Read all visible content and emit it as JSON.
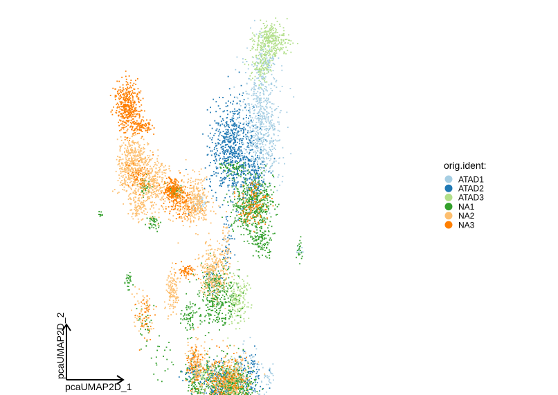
{
  "chart_data": {
    "type": "scatter",
    "title": "",
    "xlabel": "pcaUMAP2D_1",
    "ylabel": "pcaUMAP2D_2",
    "xlim": [
      0,
      100
    ],
    "ylim": [
      0,
      100
    ],
    "grid": false,
    "legend": {
      "title": "orig.ident:",
      "position": "right",
      "entries": [
        "ATAD1",
        "ATAD2",
        "ATAD3",
        "NA1",
        "NA2",
        "NA3"
      ]
    },
    "colors": {
      "ATAD1": "#a6cee3",
      "ATAD2": "#1f78b4",
      "ATAD3": "#b2df8a",
      "NA1": "#33a02c",
      "NA2": "#fdbf6f",
      "NA3": "#ff7f00"
    },
    "series": [
      {
        "name": "ATAD1",
        "clusters": [
          {
            "x": 55.5,
            "y": 74.4,
            "sx": 2.9,
            "sy": 9.1,
            "n": 700
          },
          {
            "x": 56.8,
            "y": 91.4,
            "sx": 1.3,
            "sy": 1.6,
            "n": 60
          },
          {
            "x": 51.0,
            "y": 5.8,
            "sx": 3.5,
            "sy": 4.0,
            "n": 120
          },
          {
            "x": 37.9,
            "y": 53.2,
            "sx": 1.0,
            "sy": 1.2,
            "n": 40
          },
          {
            "x": 66.5,
            "y": 40.0,
            "sx": 0.4,
            "sy": 0.6,
            "n": 12
          },
          {
            "x": 57.6,
            "y": 6.2,
            "sx": 1.0,
            "sy": 1.5,
            "n": 20
          }
        ]
      },
      {
        "name": "ATAD2",
        "clusters": [
          {
            "x": 47.0,
            "y": 67.5,
            "sx": 3.2,
            "sy": 6.2,
            "n": 650
          },
          {
            "x": 53.0,
            "y": 60.0,
            "sx": 2.0,
            "sy": 3.5,
            "n": 150
          },
          {
            "x": 43.0,
            "y": 5.0,
            "sx": 2.4,
            "sy": 3.0,
            "n": 180
          },
          {
            "x": 51.0,
            "y": 7.0,
            "sx": 2.6,
            "sy": 3.0,
            "n": 120
          },
          {
            "x": 36.0,
            "y": 8.0,
            "sx": 1.4,
            "sy": 1.5,
            "n": 60
          },
          {
            "x": 41.4,
            "y": 32.5,
            "sx": 1.2,
            "sy": 2.0,
            "n": 40
          },
          {
            "x": 45.5,
            "y": 41.7,
            "sx": 1.0,
            "sy": 4.0,
            "n": 40
          }
        ]
      },
      {
        "name": "ATAD3",
        "clusters": [
          {
            "x": 58.4,
            "y": 96.6,
            "sx": 2.4,
            "sy": 2.1,
            "n": 300
          },
          {
            "x": 56.0,
            "y": 90.0,
            "sx": 1.6,
            "sy": 2.5,
            "n": 120
          },
          {
            "x": 48.5,
            "y": 27.5,
            "sx": 1.6,
            "sy": 3.6,
            "n": 170
          },
          {
            "x": 47.0,
            "y": 5.5,
            "sx": 2.0,
            "sy": 2.5,
            "n": 110
          },
          {
            "x": 39.5,
            "y": 7.2,
            "sx": 1.2,
            "sy": 1.0,
            "n": 40
          }
        ]
      },
      {
        "name": "NA1",
        "clusters": [
          {
            "x": 53.0,
            "y": 52.5,
            "sx": 3.0,
            "sy": 3.5,
            "n": 450
          },
          {
            "x": 55.5,
            "y": 43.0,
            "sx": 1.8,
            "sy": 1.9,
            "n": 120
          },
          {
            "x": 42.8,
            "y": 28.5,
            "sx": 2.8,
            "sy": 4.0,
            "n": 350
          },
          {
            "x": 45.0,
            "y": 4.5,
            "sx": 3.5,
            "sy": 3.5,
            "n": 350
          },
          {
            "x": 49.0,
            "y": 3.0,
            "sx": 2.2,
            "sy": 2.0,
            "n": 180
          },
          {
            "x": 36.5,
            "y": 4.5,
            "sx": 1.6,
            "sy": 3.5,
            "n": 120
          },
          {
            "x": 30.6,
            "y": 56.4,
            "sx": 0.9,
            "sy": 0.8,
            "n": 60
          },
          {
            "x": 22.0,
            "y": 57.0,
            "sx": 0.8,
            "sy": 1.5,
            "n": 40
          },
          {
            "x": 24.5,
            "y": 47.5,
            "sx": 1.0,
            "sy": 1.0,
            "n": 40
          },
          {
            "x": 17.0,
            "y": 32.0,
            "sx": 0.5,
            "sy": 1.2,
            "n": 25
          },
          {
            "x": 22.0,
            "y": 21.0,
            "sx": 1.0,
            "sy": 3.5,
            "n": 30
          },
          {
            "x": 34.0,
            "y": 23.0,
            "sx": 1.2,
            "sy": 2.0,
            "n": 40
          },
          {
            "x": 48.0,
            "y": 62.5,
            "sx": 2.5,
            "sy": 1.0,
            "n": 60
          },
          {
            "x": 66.6,
            "y": 40.0,
            "sx": 0.4,
            "sy": 1.8,
            "n": 20
          },
          {
            "x": 9.2,
            "y": 50.0,
            "sx": 0.3,
            "sy": 0.3,
            "n": 10
          },
          {
            "x": 27.5,
            "y": 10.5,
            "sx": 1.8,
            "sy": 4.0,
            "n": 20
          },
          {
            "x": 35.3,
            "y": 21.5,
            "sx": 0.4,
            "sy": 2.0,
            "n": 20
          }
        ]
      },
      {
        "name": "NA2",
        "clusters": [
          {
            "x": 18.4,
            "y": 63.0,
            "sx": 2.2,
            "sy": 4.0,
            "n": 500
          },
          {
            "x": 24.5,
            "y": 58.0,
            "sx": 1.8,
            "sy": 4.0,
            "n": 250
          },
          {
            "x": 20.0,
            "y": 52.0,
            "sx": 1.5,
            "sy": 2.0,
            "n": 100
          },
          {
            "x": 35.0,
            "y": 53.5,
            "sx": 2.8,
            "sy": 3.5,
            "n": 300
          },
          {
            "x": 41.5,
            "y": 34.5,
            "sx": 2.0,
            "sy": 3.5,
            "n": 250
          },
          {
            "x": 36.2,
            "y": 10.0,
            "sx": 1.4,
            "sy": 3.0,
            "n": 150
          },
          {
            "x": 30.0,
            "y": 29.2,
            "sx": 1.0,
            "sy": 2.6,
            "n": 120
          },
          {
            "x": 45.5,
            "y": 4.5,
            "sx": 3.5,
            "sy": 4.0,
            "n": 400
          },
          {
            "x": 21.0,
            "y": 24.0,
            "sx": 1.5,
            "sy": 3.0,
            "n": 60
          },
          {
            "x": 38.2,
            "y": 53.0,
            "sx": 1.0,
            "sy": 1.5,
            "n": 50
          },
          {
            "x": 45.0,
            "y": 41.0,
            "sx": 0.8,
            "sy": 4.0,
            "n": 60
          }
        ]
      },
      {
        "name": "NA3",
        "clusters": [
          {
            "x": 16.9,
            "y": 79.0,
            "sx": 1.8,
            "sy": 3.2,
            "n": 400
          },
          {
            "x": 20.5,
            "y": 73.5,
            "sx": 2.0,
            "sy": 0.9,
            "n": 100
          },
          {
            "x": 29.6,
            "y": 56.0,
            "sx": 1.2,
            "sy": 2.0,
            "n": 200
          },
          {
            "x": 33.0,
            "y": 53.0,
            "sx": 1.8,
            "sy": 2.0,
            "n": 100
          },
          {
            "x": 33.9,
            "y": 35.0,
            "sx": 1.2,
            "sy": 1.0,
            "n": 60
          },
          {
            "x": 44.5,
            "y": 5.0,
            "sx": 3.0,
            "sy": 3.5,
            "n": 150
          },
          {
            "x": 36.0,
            "y": 10.0,
            "sx": 1.2,
            "sy": 3.0,
            "n": 60
          },
          {
            "x": 53.0,
            "y": 53.0,
            "sx": 2.5,
            "sy": 3.0,
            "n": 120
          },
          {
            "x": 22.0,
            "y": 22.5,
            "sx": 1.2,
            "sy": 3.0,
            "n": 40
          },
          {
            "x": 20.0,
            "y": 60.0,
            "sx": 2.0,
            "sy": 2.0,
            "n": 60
          }
        ]
      }
    ]
  }
}
